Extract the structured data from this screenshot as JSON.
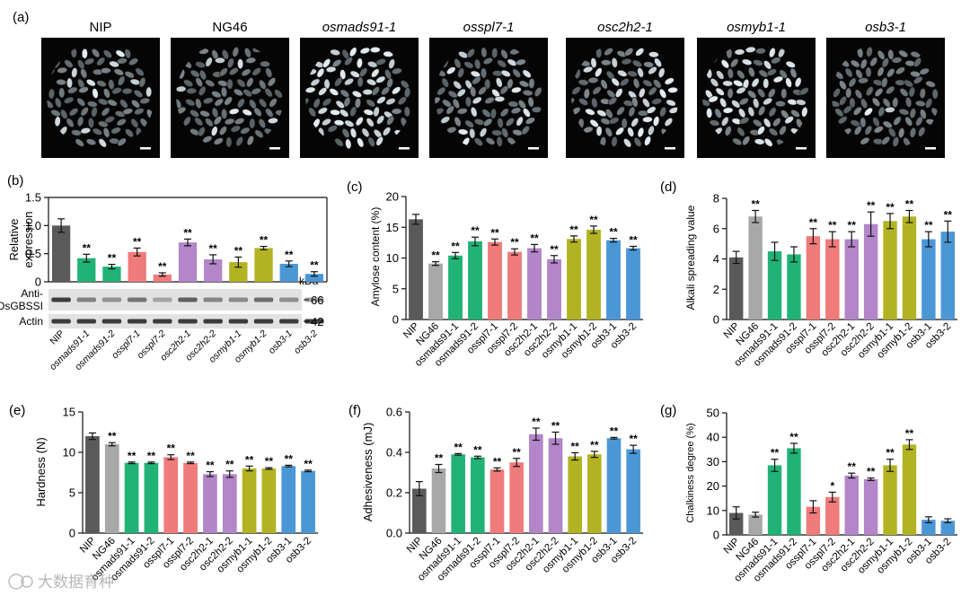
{
  "colors": {
    "NIP": "#5a5a5a",
    "NG46": "#a8a8a8",
    "green": "#21b275",
    "red": "#ef7b7b",
    "purple": "#b385c9",
    "olive": "#b2b322",
    "blue": "#4b97d6"
  },
  "panel_a": {
    "label": "(a)",
    "titles": [
      "NIP",
      "NG46",
      "osmads91-1",
      "osspl7-1",
      "osc2h2-1",
      "osmyb1-1",
      "osb3-1"
    ],
    "italic": [
      false,
      false,
      true,
      true,
      true,
      true,
      true
    ]
  },
  "blot": {
    "kda_label": "kDa",
    "rows": [
      {
        "label_lines": [
          "Anti-",
          "OsGBSSI"
        ],
        "kda": "66"
      },
      {
        "label_lines": [
          "Actin"
        ],
        "kda": "42"
      }
    ]
  },
  "watermark": "大数据育种",
  "chart_data": [
    {
      "id": "b",
      "panel_label": "(b)",
      "type": "bar",
      "ylabel": "Relative\nexpression",
      "ylim": [
        0,
        1.5
      ],
      "yticks": [
        "0",
        "0.5",
        "1.0",
        "1.5"
      ],
      "categories": [
        "NIP",
        "osmads91-1",
        "osmads91-2",
        "osspl7-1",
        "osspl7-2",
        "osc2h2-1",
        "osc2h2-2",
        "osmyb1-1",
        "osmyb1-2",
        "osb3-1",
        "osb3-2"
      ],
      "italic_categories": true,
      "values": [
        1.0,
        0.42,
        0.27,
        0.53,
        0.13,
        0.7,
        0.4,
        0.35,
        0.6,
        0.32,
        0.14
      ],
      "errors": [
        0.12,
        0.07,
        0.04,
        0.07,
        0.03,
        0.06,
        0.08,
        0.09,
        0.03,
        0.05,
        0.04
      ],
      "stars": [
        "",
        "**",
        "**",
        "**",
        "**",
        "**",
        "**",
        "**",
        "**",
        "**",
        "**"
      ],
      "color_keys": [
        "NIP",
        "green",
        "green",
        "red",
        "red",
        "purple",
        "purple",
        "olive",
        "olive",
        "blue",
        "blue"
      ]
    },
    {
      "id": "c",
      "panel_label": "(c)",
      "type": "bar",
      "ylabel": "Amylose content (%)",
      "ylim": [
        0,
        20
      ],
      "yticks": [
        "0",
        "5",
        "10",
        "15",
        "20"
      ],
      "categories": [
        "NIP",
        "NG46",
        "osmads91-1",
        "osmads91-2",
        "osspl7-1",
        "osspl7-2",
        "osc2h2-1",
        "osc2h2-2",
        "osmyb1-1",
        "osmyb1-2",
        "osb3-1",
        "osb3-2"
      ],
      "values": [
        16.3,
        9.1,
        10.4,
        12.7,
        12.6,
        11.0,
        11.6,
        9.8,
        13.1,
        14.6,
        12.9,
        11.6
      ],
      "errors": [
        0.8,
        0.3,
        0.5,
        0.7,
        0.5,
        0.5,
        0.6,
        0.6,
        0.5,
        0.6,
        0.3,
        0.3
      ],
      "stars": [
        "",
        "**",
        "**",
        "**",
        "**",
        "**",
        "**",
        "**",
        "**",
        "**",
        "**",
        "**"
      ],
      "color_keys": [
        "NIP",
        "NG46",
        "green",
        "green",
        "red",
        "red",
        "purple",
        "purple",
        "olive",
        "olive",
        "blue",
        "blue"
      ]
    },
    {
      "id": "d",
      "panel_label": "(d)",
      "type": "bar",
      "ylabel": "Alkali spreading value",
      "ylim": [
        0,
        8
      ],
      "yticks": [
        "0",
        "2",
        "4",
        "6",
        "8"
      ],
      "categories": [
        "NIP",
        "NG46",
        "osmads91-1",
        "osmads91-2",
        "osspl7-1",
        "osspl7-2",
        "osc2h2-1",
        "osc2h2-2",
        "osmyb1-1",
        "osmyb1-2",
        "osb3-1",
        "osb3-2"
      ],
      "values": [
        4.1,
        6.8,
        4.5,
        4.3,
        5.5,
        5.3,
        5.3,
        6.3,
        6.5,
        6.8,
        5.3,
        5.8
      ],
      "errors": [
        0.4,
        0.4,
        0.6,
        0.5,
        0.5,
        0.5,
        0.5,
        0.8,
        0.5,
        0.4,
        0.5,
        0.7
      ],
      "stars": [
        "",
        "**",
        "",
        "",
        "**",
        "**",
        "**",
        "**",
        "**",
        "**",
        "**",
        "**"
      ],
      "color_keys": [
        "NIP",
        "NG46",
        "green",
        "green",
        "red",
        "red",
        "purple",
        "purple",
        "olive",
        "olive",
        "blue",
        "blue"
      ]
    },
    {
      "id": "e",
      "panel_label": "(e)",
      "type": "bar",
      "ylabel": "Hardness (N)",
      "ylim": [
        0,
        15
      ],
      "yticks": [
        "0",
        "5",
        "10",
        "15"
      ],
      "categories": [
        "NIP",
        "NG46",
        "osmads91-1",
        "osmads91-2",
        "osspl7-1",
        "osspl7-2",
        "osc2h2-1",
        "osc2h2-2",
        "osmyb1-1",
        "osmyb1-2",
        "osb3-1",
        "osb3-2"
      ],
      "values": [
        12.0,
        11.0,
        8.7,
        8.7,
        9.4,
        8.7,
        7.3,
        7.3,
        8.0,
        8.0,
        8.3,
        7.7
      ],
      "errors": [
        0.4,
        0.2,
        0.1,
        0.1,
        0.3,
        0.1,
        0.3,
        0.4,
        0.3,
        0.1,
        0.1,
        0.1
      ],
      "stars": [
        "",
        "**",
        "**",
        "**",
        "**",
        "**",
        "**",
        "**",
        "**",
        "**",
        "**",
        "**"
      ],
      "color_keys": [
        "NIP",
        "NG46",
        "green",
        "green",
        "red",
        "red",
        "purple",
        "purple",
        "olive",
        "olive",
        "blue",
        "blue"
      ]
    },
    {
      "id": "f",
      "panel_label": "(f)",
      "type": "bar",
      "ylabel": "Adhesiveness (mJ)",
      "ylim": [
        0,
        0.6
      ],
      "yticks": [
        "0.0",
        "0.2",
        "0.4",
        "0.6"
      ],
      "categories": [
        "NIP",
        "NG46",
        "osmads91-1",
        "osmads91-2",
        "osspl7-1",
        "osspl7-2",
        "osc2h2-1",
        "osc2h2-2",
        "osmyb1-1",
        "osmyb1-2",
        "osb3-1",
        "osb3-2"
      ],
      "values": [
        0.22,
        0.32,
        0.39,
        0.375,
        0.315,
        0.35,
        0.49,
        0.47,
        0.38,
        0.39,
        0.47,
        0.415
      ],
      "errors": [
        0.035,
        0.02,
        0.004,
        0.006,
        0.008,
        0.02,
        0.03,
        0.03,
        0.018,
        0.015,
        0.004,
        0.02
      ],
      "stars": [
        "",
        "**",
        "**",
        "**",
        "**",
        "**",
        "**",
        "**",
        "**",
        "**",
        "**",
        "**"
      ],
      "color_keys": [
        "NIP",
        "NG46",
        "green",
        "green",
        "red",
        "red",
        "purple",
        "purple",
        "olive",
        "olive",
        "blue",
        "blue"
      ]
    },
    {
      "id": "g",
      "panel_label": "(g)",
      "type": "bar",
      "ylabel": "Chalkiness degree (%)",
      "ylim": [
        0,
        50
      ],
      "yticks": [
        "0",
        "10",
        "20",
        "30",
        "40",
        "50"
      ],
      "categories": [
        "NIP",
        "NG46",
        "osmads91-1",
        "osmads91-2",
        "osspl7-1",
        "osspl7-2",
        "osc2h2-1",
        "osc2h2-2",
        "osmyb1-1",
        "osmyb1-2",
        "osb3-1",
        "osb3-2"
      ],
      "values": [
        9.0,
        8.3,
        28.5,
        35.5,
        11.5,
        15.5,
        24.3,
        22.8,
        28.5,
        37.0,
        6.2,
        5.8
      ],
      "errors": [
        2.5,
        1.0,
        2.5,
        2.0,
        2.5,
        2.0,
        1.0,
        0.5,
        2.5,
        2.0,
        1.2,
        0.8
      ],
      "stars": [
        "",
        "",
        "**",
        "**",
        "",
        "*",
        "**",
        "**",
        "**",
        "**",
        "",
        ""
      ],
      "color_keys": [
        "NIP",
        "NG46",
        "green",
        "green",
        "red",
        "red",
        "purple",
        "purple",
        "olive",
        "olive",
        "blue",
        "blue"
      ]
    }
  ]
}
